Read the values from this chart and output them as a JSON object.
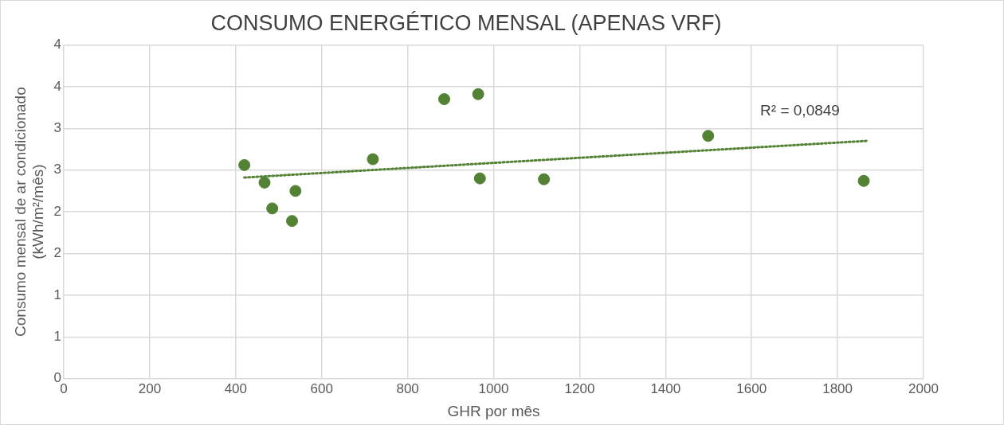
{
  "chart_data": {
    "type": "scatter",
    "title": "CONSUMO ENERGÉTICO MENSAL (APENAS VRF)",
    "xlabel": "GHR por mês",
    "ylabel": "Consumo mensal de ar condicionado\n(kWh/m²/mês)",
    "series": [
      {
        "color": "#548235",
        "marker": "circle",
        "x": [
          420,
          467,
          485,
          531,
          539,
          719,
          885,
          964,
          968,
          1117,
          1499,
          1861
        ],
        "values": [
          2.56,
          2.35,
          2.04,
          1.89,
          2.25,
          2.63,
          3.35,
          3.41,
          2.4,
          2.39,
          2.91,
          2.37
        ]
      },
      {
        "type": "line",
        "color": "#548235",
        "line_style": "dotted",
        "marker": "none",
        "x": [
          420,
          1869
        ],
        "values": [
          2.41,
          2.85
        ]
      }
    ],
    "annotations": [
      "R² = 0,0849"
    ],
    "xlim": [
      0,
      2000
    ],
    "xticks": [
      0,
      200,
      400,
      600,
      800,
      1000,
      1200,
      1400,
      1600,
      1800,
      2000
    ],
    "ylim": [
      0,
      4
    ],
    "yticks": [
      0,
      {
        "value": 0.5,
        "label": "1"
      },
      1,
      {
        "value": 1.5,
        "label": "2"
      },
      2,
      {
        "value": 2.5,
        "label": "3"
      },
      3,
      {
        "value": 3.5,
        "label": "4"
      },
      4
    ],
    "grid": true,
    "legend": false
  }
}
